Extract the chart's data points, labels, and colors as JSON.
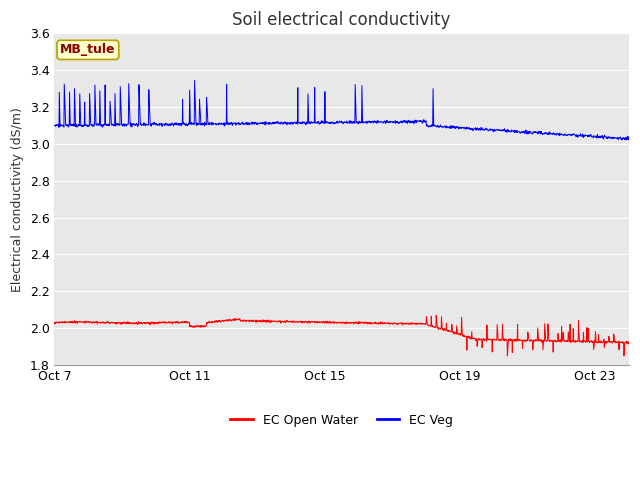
{
  "title": "Soil electrical conductivity",
  "ylabel": "Electrical conductivity (dS/m)",
  "ylim": [
    1.8,
    3.6
  ],
  "yticks": [
    1.8,
    2.0,
    2.2,
    2.4,
    2.6,
    2.8,
    3.0,
    3.2,
    3.4,
    3.6
  ],
  "xtick_labels": [
    "Oct 7",
    "Oct 11",
    "Oct 15",
    "Oct 19",
    "Oct 23"
  ],
  "xtick_positions": [
    0,
    4,
    8,
    12,
    16
  ],
  "xlim_days": [
    0,
    17
  ],
  "fig_bg_color": "#ffffff",
  "plot_bg_color": "#e8e8e8",
  "grid_color": "#ffffff",
  "annotation_label": "MB_tule",
  "annotation_color": "#8b0000",
  "annotation_bg": "#ffffcc",
  "annotation_border": "#b8a000",
  "legend_entries": [
    "EC Open Water",
    "EC Veg"
  ],
  "legend_colors": [
    "#ff0000",
    "#0000ff"
  ],
  "title_fontsize": 12,
  "axis_fontsize": 9,
  "tick_fontsize": 9
}
